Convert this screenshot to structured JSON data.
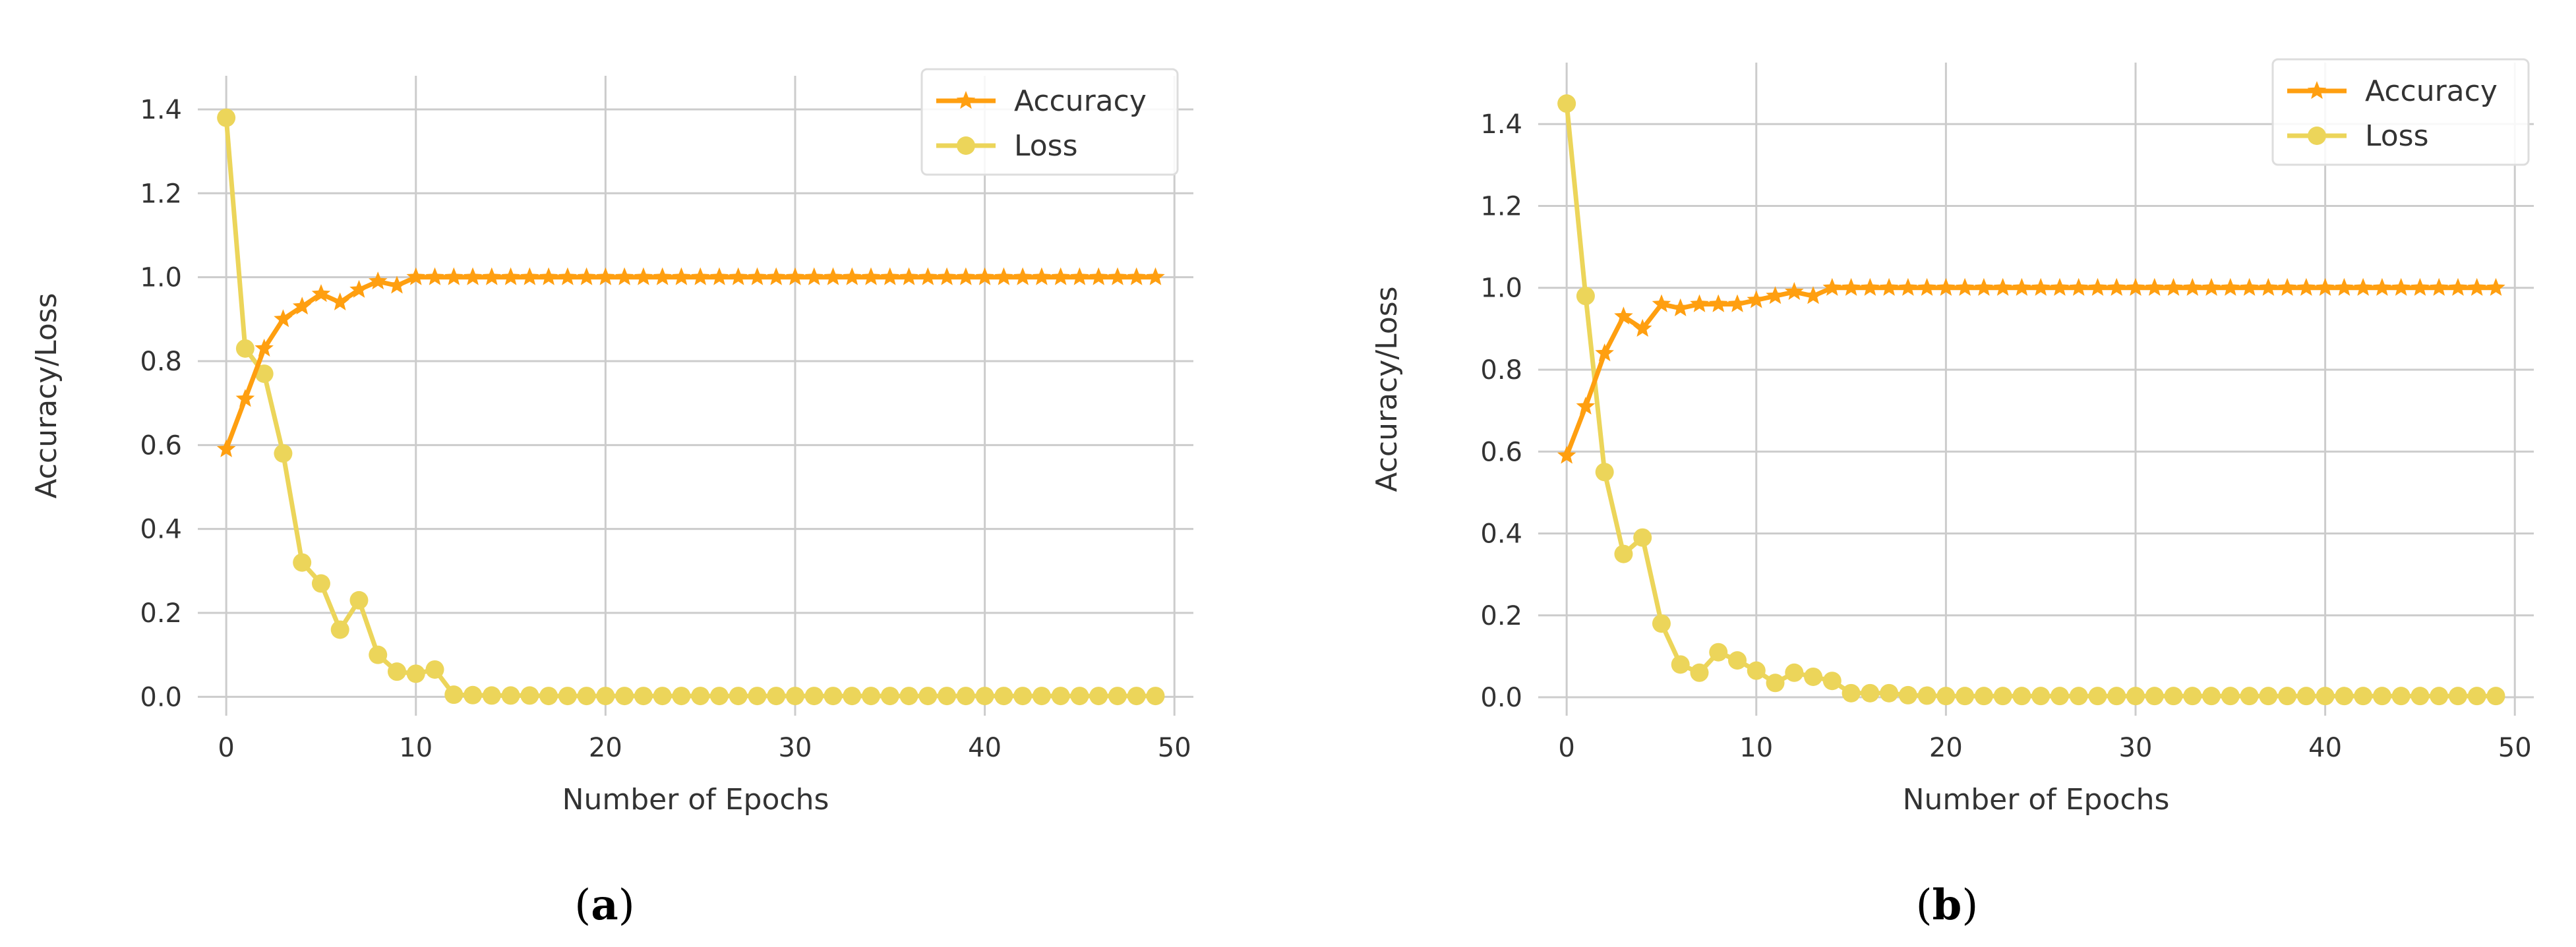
{
  "chart_data": [
    {
      "type": "line",
      "caption_open": "(",
      "caption_letter": "a",
      "caption_close": ")",
      "xlabel": "Number of Epochs",
      "ylabel": "Accuracy/Loss",
      "xlim": [
        -1.5,
        51
      ],
      "ylim": [
        -0.045,
        1.48
      ],
      "xticks": [
        0,
        10,
        20,
        30,
        40,
        50
      ],
      "yticks": [
        0.0,
        0.2,
        0.4,
        0.6,
        0.8,
        1.0,
        1.2,
        1.4
      ],
      "ytick_labels": [
        "0.0",
        "0.2",
        "0.4",
        "0.6",
        "0.8",
        "1.0",
        "1.2",
        "1.4"
      ],
      "grid": true,
      "legend_position": "top-right",
      "x": [
        0,
        1,
        2,
        3,
        4,
        5,
        6,
        7,
        8,
        9,
        10,
        11,
        12,
        13,
        14,
        15,
        16,
        17,
        18,
        19,
        20,
        21,
        22,
        23,
        24,
        25,
        26,
        27,
        28,
        29,
        30,
        31,
        32,
        33,
        34,
        35,
        36,
        37,
        38,
        39,
        40,
        41,
        42,
        43,
        44,
        45,
        46,
        47,
        48,
        49
      ],
      "series": [
        {
          "name": "Accuracy",
          "color": "#ff9f10",
          "marker": "star",
          "values": [
            0.59,
            0.71,
            0.83,
            0.9,
            0.93,
            0.96,
            0.94,
            0.97,
            0.99,
            0.98,
            1.0,
            1.0,
            1.0,
            1.0,
            1.0,
            1.0,
            1.0,
            1.0,
            1.0,
            1.0,
            1.0,
            1.0,
            1.0,
            1.0,
            1.0,
            1.0,
            1.0,
            1.0,
            1.0,
            1.0,
            1.0,
            1.0,
            1.0,
            1.0,
            1.0,
            1.0,
            1.0,
            1.0,
            1.0,
            1.0,
            1.0,
            1.0,
            1.0,
            1.0,
            1.0,
            1.0,
            1.0,
            1.0,
            1.0,
            1.0
          ]
        },
        {
          "name": "Loss",
          "color": "#ecd55a",
          "marker": "circle",
          "values": [
            1.38,
            0.83,
            0.77,
            0.58,
            0.32,
            0.27,
            0.16,
            0.23,
            0.1,
            0.06,
            0.055,
            0.065,
            0.005,
            0.004,
            0.003,
            0.003,
            0.003,
            0.002,
            0.002,
            0.002,
            0.002,
            0.002,
            0.002,
            0.002,
            0.002,
            0.002,
            0.002,
            0.002,
            0.002,
            0.002,
            0.002,
            0.002,
            0.002,
            0.002,
            0.002,
            0.002,
            0.002,
            0.002,
            0.002,
            0.002,
            0.002,
            0.002,
            0.002,
            0.002,
            0.002,
            0.002,
            0.002,
            0.002,
            0.002,
            0.002
          ]
        }
      ]
    },
    {
      "type": "line",
      "caption_open": "(",
      "caption_letter": "b",
      "caption_close": ")",
      "xlabel": "Number of Epochs",
      "ylabel": "Accuracy/Loss",
      "xlim": [
        -1.5,
        51
      ],
      "ylim": [
        -0.045,
        1.55
      ],
      "xticks": [
        0,
        10,
        20,
        30,
        40,
        50
      ],
      "yticks": [
        0.0,
        0.2,
        0.4,
        0.6,
        0.8,
        1.0,
        1.2,
        1.4
      ],
      "ytick_labels": [
        "0.0",
        "0.2",
        "0.4",
        "0.6",
        "0.8",
        "1.0",
        "1.2",
        "1.4"
      ],
      "grid": true,
      "legend_position": "top-right",
      "x": [
        0,
        1,
        2,
        3,
        4,
        5,
        6,
        7,
        8,
        9,
        10,
        11,
        12,
        13,
        14,
        15,
        16,
        17,
        18,
        19,
        20,
        21,
        22,
        23,
        24,
        25,
        26,
        27,
        28,
        29,
        30,
        31,
        32,
        33,
        34,
        35,
        36,
        37,
        38,
        39,
        40,
        41,
        42,
        43,
        44,
        45,
        46,
        47,
        48,
        49
      ],
      "series": [
        {
          "name": "Accuracy",
          "color": "#ff9f10",
          "marker": "star",
          "values": [
            0.59,
            0.71,
            0.84,
            0.93,
            0.9,
            0.96,
            0.95,
            0.96,
            0.96,
            0.96,
            0.97,
            0.98,
            0.99,
            0.98,
            1.0,
            1.0,
            1.0,
            1.0,
            1.0,
            1.0,
            1.0,
            1.0,
            1.0,
            1.0,
            1.0,
            1.0,
            1.0,
            1.0,
            1.0,
            1.0,
            1.0,
            1.0,
            1.0,
            1.0,
            1.0,
            1.0,
            1.0,
            1.0,
            1.0,
            1.0,
            1.0,
            1.0,
            1.0,
            1.0,
            1.0,
            1.0,
            1.0,
            1.0,
            1.0,
            1.0
          ]
        },
        {
          "name": "Loss",
          "color": "#ecd55a",
          "marker": "circle",
          "values": [
            1.45,
            0.98,
            0.55,
            0.35,
            0.39,
            0.18,
            0.08,
            0.06,
            0.11,
            0.09,
            0.065,
            0.035,
            0.06,
            0.05,
            0.04,
            0.01,
            0.01,
            0.01,
            0.005,
            0.004,
            0.003,
            0.003,
            0.003,
            0.003,
            0.003,
            0.003,
            0.003,
            0.003,
            0.003,
            0.003,
            0.003,
            0.003,
            0.003,
            0.003,
            0.003,
            0.003,
            0.003,
            0.003,
            0.003,
            0.003,
            0.003,
            0.003,
            0.003,
            0.003,
            0.003,
            0.003,
            0.003,
            0.003,
            0.003,
            0.003
          ]
        }
      ]
    }
  ]
}
